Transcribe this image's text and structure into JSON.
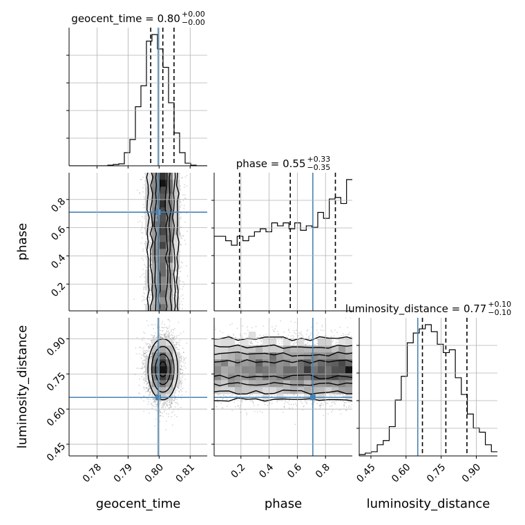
{
  "chart_data": {
    "type": "corner",
    "parameters": [
      "geocent_time",
      "phase",
      "luminosity_distance"
    ],
    "truth_color": "#4682b4",
    "titles": [
      {
        "param": "geocent_time",
        "text": "geocent_time = 0.80",
        "sup": "+0.00",
        "sub": "−0.00"
      },
      {
        "param": "phase",
        "text": "phase = 0.55",
        "sup": "+0.33",
        "sub": "−0.35"
      },
      {
        "param": "luminosity_distance",
        "text": "luminosity_distance = 0.77",
        "sup": "+0.10",
        "sub": "−0.10"
      }
    ],
    "axis_labels": {
      "x": [
        "geocent_time",
        "phase",
        "luminosity_distance"
      ],
      "y": [
        "phase",
        "luminosity_distance"
      ]
    },
    "ranges": {
      "geocent_time": [
        0.771,
        0.8155
      ],
      "phase": [
        0.01,
        0.99
      ],
      "luminosity_distance": [
        0.4,
        0.99
      ]
    },
    "ticks": {
      "geocent_time": {
        "values": [
          0.78,
          0.79,
          0.8,
          0.81
        ],
        "labels": [
          "0.78",
          "0.79",
          "0.80",
          "0.81"
        ]
      },
      "phase": {
        "values": [
          0.2,
          0.4,
          0.6,
          0.8
        ],
        "labels": [
          "0.2",
          "0.4",
          "0.6",
          "0.8"
        ]
      },
      "luminosity_distance": {
        "values": [
          0.45,
          0.6,
          0.75,
          0.9
        ],
        "labels": [
          "0.45",
          "0.60",
          "0.75",
          "0.90"
        ]
      }
    },
    "truths": {
      "geocent_time": 0.7997,
      "phase": 0.71,
      "luminosity_distance": 0.65
    },
    "quantiles": {
      "geocent_time": [
        0.7973,
        0.8012,
        0.8048
      ],
      "phase": [
        0.19,
        0.55,
        0.87
      ],
      "luminosity_distance": [
        0.67,
        0.77,
        0.86
      ]
    },
    "histograms": {
      "geocent_time": [
        0,
        0,
        0,
        0,
        0,
        0,
        0,
        0.5,
        1,
        1.5,
        10,
        20,
        45,
        61,
        95,
        100,
        89,
        75,
        48,
        25,
        10,
        2,
        0.5,
        0,
        0
      ],
      "phase": [
        50,
        50,
        47,
        44,
        50,
        47,
        50,
        53,
        55,
        53,
        59,
        57,
        59,
        55,
        59,
        54,
        57,
        56,
        66,
        62,
        75,
        76,
        72,
        88
      ],
      "luminosity_distance": [
        1,
        2,
        3,
        8,
        11,
        21,
        40,
        57,
        81,
        88,
        91,
        94,
        89,
        80,
        74,
        76,
        56,
        44,
        30,
        20,
        17,
        8,
        3
      ]
    },
    "sample_distributions": {
      "geocent_time": {
        "mean": 0.8012,
        "sd": 0.0024
      },
      "phase": {
        "min": 0.01,
        "max": 0.99,
        "peak": 0.97
      },
      "luminosity_distance": {
        "mean": 0.77,
        "sd": 0.065
      }
    }
  }
}
